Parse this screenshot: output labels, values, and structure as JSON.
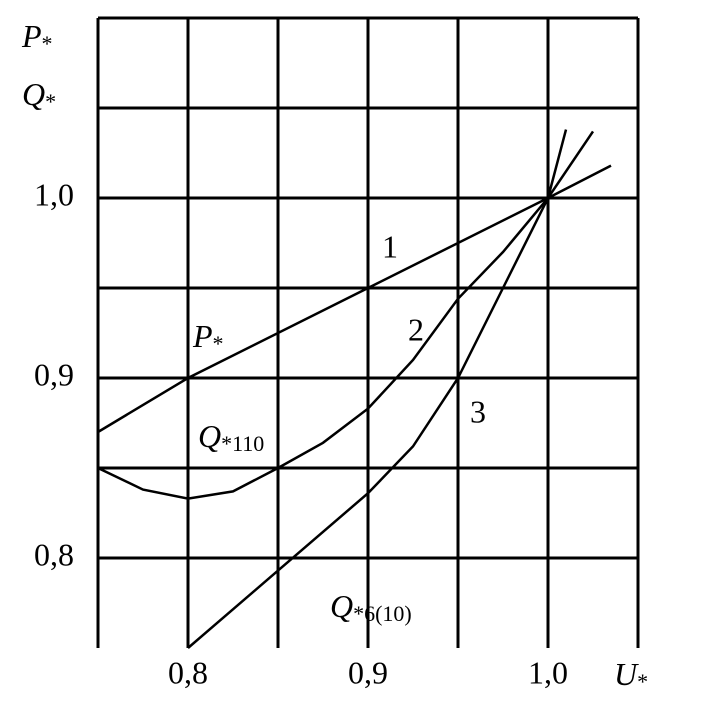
{
  "chart_data": {
    "type": "line",
    "xlim": [
      0.75,
      1.05
    ],
    "ylim": [
      0.75,
      1.1
    ],
    "xticks": [
      {
        "value": 0.8,
        "label": "0,8"
      },
      {
        "value": 0.9,
        "label": "0,9"
      },
      {
        "value": 1.0,
        "label": "1,0"
      }
    ],
    "yticks": [
      {
        "value": 0.8,
        "label": "0,8"
      },
      {
        "value": 0.9,
        "label": "0,9"
      },
      {
        "value": 1.0,
        "label": "1,0"
      }
    ],
    "xgrid": [
      0.75,
      0.8,
      0.85,
      0.9,
      0.95,
      1.0,
      1.05
    ],
    "ygrid": [
      0.8,
      0.85,
      0.9,
      0.95,
      1.0,
      1.05,
      1.1
    ],
    "x_label": {
      "main": "U",
      "sub": "*"
    },
    "y_label": [
      {
        "main": "P",
        "sub": "*"
      },
      {
        "main": "Q",
        "sub": "*"
      }
    ],
    "series": [
      {
        "name": {
          "main": "P",
          "sub": "*"
        },
        "number": "1",
        "color": "#000000",
        "x": [
          0.75,
          0.8,
          0.9,
          1.0,
          1.035
        ],
        "values": [
          0.87,
          0.9,
          0.95,
          1.0,
          1.018
        ]
      },
      {
        "name": {
          "main": "Q",
          "sub": "*110"
        },
        "number": "2",
        "color": "#000000",
        "x": [
          0.75,
          0.775,
          0.8,
          0.825,
          0.85,
          0.875,
          0.9,
          0.925,
          0.95,
          0.975,
          1.0,
          1.025
        ],
        "values": [
          0.85,
          0.838,
          0.833,
          0.837,
          0.85,
          0.864,
          0.883,
          0.91,
          0.944,
          0.97,
          1.0,
          1.037
        ]
      },
      {
        "name": {
          "main": "Q",
          "sub": "*6(10)"
        },
        "number": "3",
        "color": "#000000",
        "x": [
          0.8,
          0.85,
          0.9,
          0.925,
          0.95,
          0.975,
          1.0,
          1.01
        ],
        "values": [
          0.75,
          0.793,
          0.836,
          0.862,
          0.9,
          0.95,
          1.0,
          1.038
        ]
      }
    ]
  }
}
